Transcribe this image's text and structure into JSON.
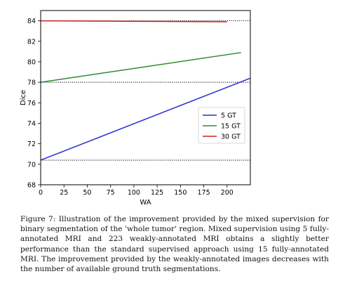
{
  "chart_data": {
    "type": "line",
    "xlabel": "WA",
    "ylabel": "Dice",
    "xlim": [
      0,
      225
    ],
    "ylim": [
      68,
      85
    ],
    "xticks": [
      0,
      25,
      50,
      75,
      100,
      125,
      150,
      175,
      200
    ],
    "yticks": [
      68,
      70,
      72,
      74,
      76,
      78,
      80,
      82,
      84
    ],
    "grid": false,
    "legend_position": "right, below middle",
    "reference_lines": [
      {
        "y": 84.0,
        "color": "#000000",
        "style": "dotted"
      },
      {
        "y": 78.0,
        "color": "#000000",
        "style": "dotted"
      },
      {
        "y": 70.4,
        "color": "#000000",
        "style": "dotted"
      }
    ],
    "series": [
      {
        "name": "5 GT",
        "color": "#2b2bd6",
        "x": [
          0,
          225
        ],
        "y": [
          70.4,
          78.4
        ]
      },
      {
        "name": "15 GT",
        "color": "#2e8b2e",
        "x": [
          0,
          215
        ],
        "y": [
          78.0,
          80.9
        ]
      },
      {
        "name": "30 GT",
        "color": "#cc2222",
        "x": [
          0,
          200
        ],
        "y": [
          84.0,
          83.9
        ]
      }
    ]
  },
  "caption": "Figure 7: Illustration of the improvement provided by the mixed supervision for binary segmentation of the 'whole tumor' region. Mixed supervision using 5 fully-annotated MRI and 223 weakly-annotated MRI obtains a slightly better performance than the standard supervised approach using 15 fully-annotated MRI. The improvement provided by the weakly-annotated images decreases with the number of available ground truth segmentations."
}
